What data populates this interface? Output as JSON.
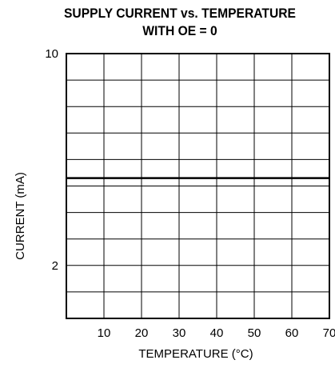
{
  "chart_data": {
    "type": "line",
    "title": "SUPPLY CURRENT vs. TEMPERATURE",
    "subtitle": "WITH OE = 0",
    "xlabel": "TEMPERATURE (°C)",
    "ylabel": "CURRENT (mA)",
    "xlim": [
      0,
      70
    ],
    "ylim": [
      0,
      10
    ],
    "x_ticks": [
      10,
      20,
      30,
      40,
      50,
      60,
      70
    ],
    "y_tick_labels": [
      {
        "value": 10,
        "label": "10"
      },
      {
        "value": 2,
        "label": "2"
      }
    ],
    "grid": true,
    "series": [
      {
        "x": [
          0,
          10,
          20,
          30,
          40,
          50,
          60,
          70
        ],
        "y": [
          5.3,
          5.3,
          5.3,
          5.3,
          5.3,
          5.3,
          5.3,
          5.3
        ]
      }
    ]
  },
  "colors": {
    "line": "#000000",
    "grid": "#000000",
    "background": "#ffffff"
  }
}
